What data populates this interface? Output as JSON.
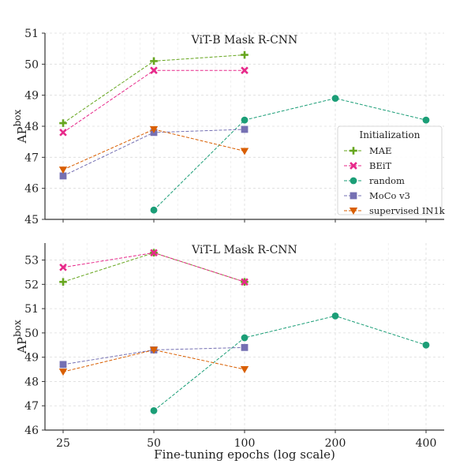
{
  "chart_data": [
    {
      "type": "line",
      "title": "ViT-B Mask R-CNN",
      "ylabel": "AP",
      "ylabel_sup": "box",
      "xlabel": "",
      "x_scale": "log",
      "x_ticks": [
        25,
        50,
        100,
        200,
        400
      ],
      "ylim": [
        45,
        51
      ],
      "y_ticks": [
        45,
        46,
        47,
        48,
        49,
        50,
        51
      ],
      "grid": true,
      "legend": {
        "title": "Initialization",
        "placement": "lower-right",
        "entries": [
          "MAE",
          "BEiT",
          "random",
          "MoCo v3",
          "supervised IN1k"
        ]
      },
      "series": [
        {
          "name": "MAE",
          "color": "#66a61e",
          "marker": "plus",
          "x": [
            25,
            50,
            100
          ],
          "values": [
            48.1,
            50.1,
            50.3
          ]
        },
        {
          "name": "BEiT",
          "color": "#e7298a",
          "marker": "x",
          "x": [
            25,
            50,
            100
          ],
          "values": [
            47.8,
            49.8,
            49.8
          ]
        },
        {
          "name": "random",
          "color": "#1b9e77",
          "marker": "circle",
          "x": [
            50,
            100,
            200,
            400
          ],
          "values": [
            45.3,
            48.2,
            48.9,
            48.2
          ]
        },
        {
          "name": "MoCo v3",
          "color": "#7570b3",
          "marker": "square",
          "x": [
            25,
            50,
            100
          ],
          "values": [
            46.4,
            47.8,
            47.9
          ]
        },
        {
          "name": "supervised IN1k",
          "color": "#d95f02",
          "marker": "triangle-down",
          "x": [
            25,
            50,
            100
          ],
          "values": [
            46.6,
            47.9,
            47.2
          ]
        }
      ]
    },
    {
      "type": "line",
      "title": "ViT-L Mask R-CNN",
      "ylabel": "AP",
      "ylabel_sup": "box",
      "xlabel": "Fine-tuning epochs (log scale)",
      "x_scale": "log",
      "x_ticks": [
        25,
        50,
        100,
        200,
        400
      ],
      "ylim": [
        46,
        53.7
      ],
      "y_ticks": [
        46,
        47,
        48,
        49,
        50,
        51,
        52,
        53
      ],
      "grid": true,
      "series": [
        {
          "name": "MAE",
          "color": "#66a61e",
          "marker": "plus",
          "x": [
            25,
            50,
            100
          ],
          "values": [
            52.1,
            53.3,
            52.1
          ]
        },
        {
          "name": "BEiT",
          "color": "#e7298a",
          "marker": "x",
          "x": [
            25,
            50,
            100
          ],
          "values": [
            52.7,
            53.3,
            52.1
          ]
        },
        {
          "name": "random",
          "color": "#1b9e77",
          "marker": "circle",
          "x": [
            50,
            100,
            200,
            400
          ],
          "values": [
            46.8,
            49.8,
            50.7,
            49.5
          ]
        },
        {
          "name": "MoCo v3",
          "color": "#7570b3",
          "marker": "square",
          "x": [
            25,
            50,
            100
          ],
          "values": [
            48.7,
            49.3,
            49.4
          ]
        },
        {
          "name": "supervised IN1k",
          "color": "#d95f02",
          "marker": "triangle-down",
          "x": [
            25,
            50,
            100
          ],
          "values": [
            48.4,
            49.3,
            48.5
          ]
        }
      ]
    }
  ]
}
